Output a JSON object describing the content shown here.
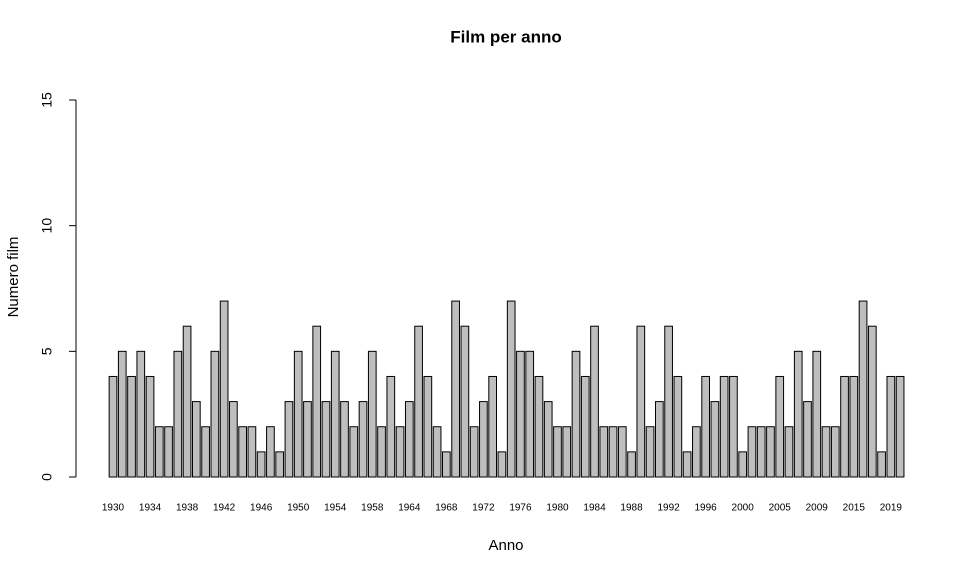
{
  "chart_data": {
    "type": "bar",
    "title": "Film per anno",
    "x_label": "Anno",
    "y_label": "Numero film",
    "categories": [
      "1930",
      null,
      null,
      null,
      "1934",
      null,
      null,
      null,
      "1938",
      null,
      null,
      null,
      "1942",
      null,
      null,
      null,
      "1946",
      null,
      null,
      null,
      "1950",
      null,
      null,
      null,
      "1954",
      null,
      null,
      null,
      "1958",
      null,
      null,
      null,
      "1964",
      null,
      null,
      null,
      "1968",
      null,
      null,
      null,
      "1972",
      null,
      null,
      null,
      "1976",
      null,
      null,
      null,
      "1980",
      null,
      null,
      null,
      "1984",
      null,
      null,
      null,
      "1988",
      null,
      null,
      null,
      "1992",
      null,
      null,
      null,
      "1996",
      null,
      null,
      null,
      "2000",
      null,
      null,
      null,
      "2005",
      null,
      null,
      null,
      "2009",
      null,
      null,
      null,
      "2015",
      null,
      null,
      null,
      "2019",
      null
    ],
    "values": [
      4,
      5,
      4,
      5,
      4,
      2,
      2,
      5,
      6,
      3,
      2,
      5,
      7,
      3,
      2,
      2,
      1,
      2,
      1,
      3,
      5,
      3,
      6,
      3,
      5,
      3,
      2,
      3,
      5,
      2,
      4,
      2,
      3,
      6,
      4,
      2,
      1,
      7,
      6,
      2,
      3,
      4,
      1,
      7,
      5,
      5,
      4,
      3,
      2,
      2,
      5,
      4,
      6,
      2,
      2,
      2,
      1,
      6,
      2,
      3,
      6,
      4,
      1,
      2,
      4,
      3,
      4,
      4,
      1,
      2,
      2,
      2,
      4,
      2,
      5,
      3,
      5,
      2,
      2,
      4,
      4,
      7,
      6,
      1,
      4,
      4
    ],
    "color": "#bebebe",
    "ylim": [
      0,
      15
    ],
    "yticks": [
      0,
      5,
      10,
      15
    ],
    "grid": false
  }
}
